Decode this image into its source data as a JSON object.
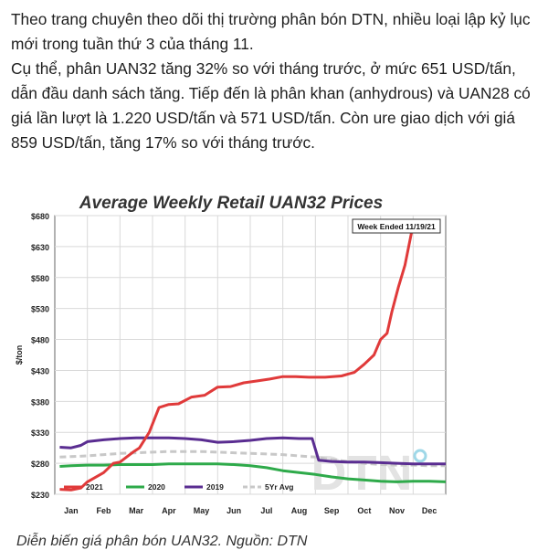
{
  "article": {
    "paragraph1": "Theo trang chuyên theo dõi thị trường phân bón DTN, nhiều loại lập kỷ lục mới trong tuần thứ 3 của tháng 11.",
    "paragraph2": "Cụ thể, phân UAN32 tăng 32% so với tháng trước, ở mức 651 USD/tấn, dẫn đầu danh sách tăng. Tiếp đến là phân khan (anhydrous) và UAN28 có giá lần lượt là 1.220 USD/tấn và 571 USD/tấn. Còn ure giao dịch với giá 859 USD/tấn, tăng 17% so với tháng trước."
  },
  "caption": "Diễn biến giá phân bón UAN32. Nguồn: DTN",
  "chart_data": {
    "type": "line",
    "title": "Average Weekly Retail UAN32 Prices",
    "ylabel": "$/ton",
    "xlabel": "",
    "annotation": "Week Ended 11/19/21",
    "watermark": "DTN",
    "categories": [
      "Jan",
      "Feb",
      "Mar",
      "Apr",
      "May",
      "Jun",
      "Jul",
      "Aug",
      "Sep",
      "Oct",
      "Nov",
      "Dec"
    ],
    "y_ticks": [
      "$680",
      "$630",
      "$580",
      "$530",
      "$480",
      "$430",
      "$380",
      "$330",
      "$280",
      "$230"
    ],
    "ylim": [
      230,
      680
    ],
    "xlim": [
      0,
      12
    ],
    "grid": true,
    "legend_position": "bottom",
    "colors": {
      "2021": "#e03a3a",
      "2020": "#2eaa4a",
      "2019": "#5a2d91",
      "5Yr Avg": "#c8c8c8"
    },
    "series": [
      {
        "name": "2021",
        "x": [
          0.15,
          0.5,
          0.8,
          1.0,
          1.5,
          1.8,
          2.0,
          2.2,
          2.4,
          2.6,
          2.9,
          3.2,
          3.5,
          3.8,
          4.2,
          4.6,
          5.0,
          5.4,
          5.8,
          6.2,
          6.6,
          7.0,
          7.4,
          7.8,
          8.3,
          8.8,
          9.2,
          9.5,
          9.8,
          10.0,
          10.2,
          10.35,
          10.55,
          10.75,
          10.95
        ],
        "y": [
          238,
          237,
          240,
          250,
          265,
          280,
          282,
          290,
          298,
          305,
          330,
          370,
          375,
          376,
          387,
          390,
          403,
          404,
          410,
          413,
          416,
          420,
          420,
          419,
          419,
          421,
          427,
          440,
          455,
          480,
          490,
          525,
          565,
          600,
          653
        ]
      },
      {
        "name": "2020",
        "x": [
          0.15,
          0.5,
          1.0,
          1.5,
          2.0,
          2.5,
          3.0,
          3.5,
          4.0,
          4.5,
          5.0,
          5.5,
          6.0,
          6.5,
          7.0,
          7.5,
          8.0,
          8.5,
          9.0,
          9.5,
          10.0,
          10.5,
          11.0,
          11.5,
          12.0
        ],
        "y": [
          275,
          276,
          277,
          277,
          278,
          278,
          278,
          279,
          279,
          279,
          279,
          278,
          276,
          273,
          268,
          265,
          262,
          258,
          255,
          253,
          251,
          250,
          251,
          251,
          250
        ]
      },
      {
        "name": "2019",
        "x": [
          0.15,
          0.5,
          0.8,
          1.0,
          1.5,
          2.0,
          2.5,
          3.0,
          3.5,
          4.0,
          4.5,
          5.0,
          5.5,
          6.0,
          6.5,
          7.0,
          7.5,
          7.9,
          8.1,
          8.5,
          9.0,
          9.5,
          10.0,
          10.5,
          11.0,
          11.5,
          12.0
        ],
        "y": [
          306,
          305,
          309,
          315,
          318,
          320,
          321,
          321,
          321,
          320,
          318,
          314,
          315,
          317,
          320,
          321,
          320,
          320,
          285,
          283,
          282,
          282,
          281,
          280,
          279,
          279,
          279
        ]
      },
      {
        "name": "5Yr Avg",
        "x": [
          0.15,
          0.5,
          1.0,
          1.5,
          2.0,
          2.5,
          3.0,
          3.5,
          4.0,
          4.5,
          5.0,
          5.5,
          6.0,
          6.5,
          7.0,
          7.5,
          8.0,
          8.5,
          9.0,
          9.5,
          10.0,
          10.5,
          11.0,
          11.5,
          12.0
        ],
        "y": [
          290,
          291,
          292,
          294,
          296,
          297,
          298,
          299,
          299,
          299,
          298,
          297,
          296,
          295,
          294,
          292,
          290,
          286,
          283,
          280,
          278,
          277,
          277,
          276,
          276
        ]
      }
    ]
  }
}
